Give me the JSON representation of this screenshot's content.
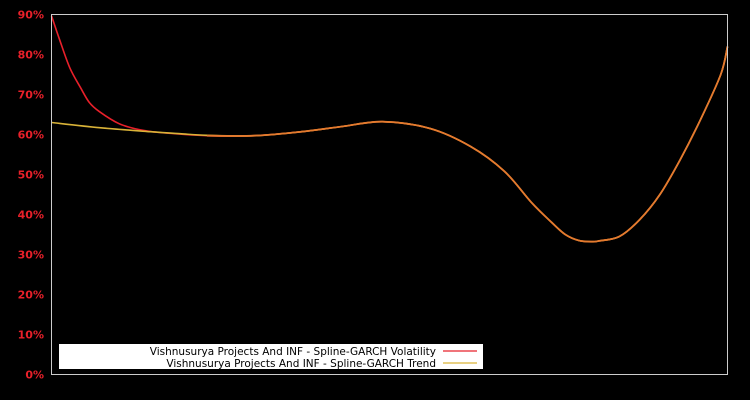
{
  "chart_data": {
    "type": "line",
    "title": "",
    "xlabel": "",
    "ylabel": "",
    "ylim": [
      0,
      90
    ],
    "y_ticks": [
      "0%",
      "10%",
      "20%",
      "30%",
      "40%",
      "50%",
      "60%",
      "70%",
      "80%",
      "90%"
    ],
    "grid": false,
    "legend_position": "bottom-left",
    "colors": {
      "background": "#000000",
      "axis": "#cccccc",
      "tick_label": "#e8202a",
      "volatility": "#e8202a",
      "trend": "#d9b338",
      "overlap": "#e37a2e",
      "legend_bg": "#ffffff",
      "legend_text": "#000000"
    },
    "series": [
      {
        "name": "Vishnusurya Projects And INF - Spline-GARCH Volatility",
        "color": "#e8202a",
        "x": [
          0,
          1.2,
          2.7,
          4.3,
          5.6,
          7.1,
          10,
          13,
          16,
          23,
          30,
          37,
          43,
          49,
          56,
          62,
          67,
          71,
          74,
          76,
          78,
          80,
          81,
          84,
          87,
          90,
          93,
          96,
          99,
          100
        ],
        "values": [
          89.7,
          83.7,
          76.7,
          71.7,
          68.0,
          65.7,
          62.7,
          61.2,
          60.5,
          59.7,
          59.7,
          60.7,
          62.0,
          63.2,
          61.5,
          57.0,
          50.8,
          43.0,
          38.0,
          35.0,
          33.5,
          33.2,
          33.4,
          34.5,
          38.7,
          45.0,
          53.7,
          63.7,
          75.0,
          82.0
        ]
      },
      {
        "name": "Vishnusurya Projects And INF - Spline-GARCH Trend",
        "color": "#d9b338",
        "x": [
          0,
          7.1,
          14.6,
          19,
          23,
          30,
          37,
          43,
          49,
          56,
          62,
          67,
          71,
          74,
          76,
          78,
          80,
          81,
          84,
          87,
          90,
          93,
          96,
          99,
          100
        ],
        "values": [
          63.0,
          61.7,
          60.7,
          60.2,
          59.8,
          59.7,
          60.7,
          62.0,
          63.2,
          61.5,
          57.0,
          50.8,
          43.0,
          38.0,
          35.0,
          33.5,
          33.2,
          33.4,
          34.5,
          38.7,
          45.0,
          53.7,
          63.7,
          75.0,
          82.0
        ]
      }
    ],
    "legend": [
      {
        "label": "Vishnusurya Projects And INF - Spline-GARCH Volatility",
        "color": "#e8202a"
      },
      {
        "label": "Vishnusurya Projects And INF - Spline-GARCH Trend",
        "color": "#d9b338"
      }
    ]
  }
}
